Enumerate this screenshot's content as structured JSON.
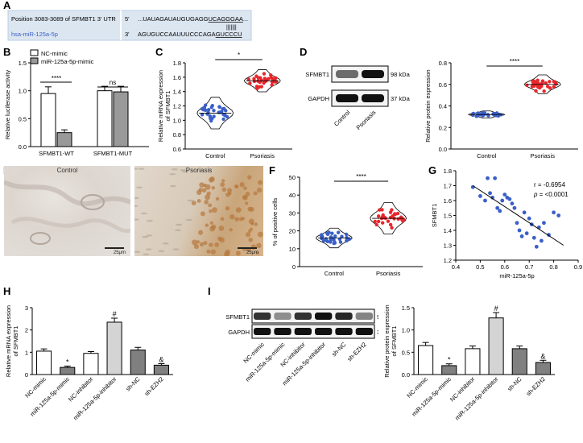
{
  "panelLabels": {
    "A": "A",
    "B": "B",
    "C": "C",
    "D": "D",
    "E": "E",
    "F": "F",
    "G": "G",
    "H": "H",
    "I": "I"
  },
  "panelA": {
    "row1Left": "Position 3083-3089 of SFMBT1 3' UTR",
    "row1Prime": "5'",
    "row1SeqPre": "...UAUAGAUAUGUGAGG",
    "row1SeqSeed": "UCAGGGAA",
    "row1SeqPost": "...",
    "row2Left": "hsa-miR-125a-5p",
    "row2Prime": "3'",
    "row2SeqPre": "AGUGUCCAAUUUCCCAGA",
    "row2SeqSeed": "GUCCCU",
    "pairing": "|||||||"
  },
  "panelB": {
    "legend": [
      "NC-mimic",
      "miR-125a-5p-mimic"
    ],
    "ylabel": "Relative luciferase activity",
    "sig1": "****",
    "sig2": "ns"
  },
  "panelC": {
    "ylabel": "Relative mRNA expression of SFMBT1",
    "sig": "*"
  },
  "panelD": {
    "blotRows": [
      "SFMBT1",
      "GAPDH"
    ],
    "blotKda": [
      "98 kDa",
      "37 kDa"
    ],
    "blotLanes": [
      "Control",
      "Psoriasis"
    ],
    "ylabel": "Relative protein expression",
    "sig": "****"
  },
  "panelE": {
    "captions": [
      "Control",
      "Psoriasis"
    ],
    "scale": [
      "25μm",
      "25μm"
    ]
  },
  "panelF": {
    "ylabel": "% of positive cells",
    "sig": "****"
  },
  "panelG": {
    "ylabel": "SFMBT1",
    "xlabel": "miR-125a-5p",
    "stat1": "r = -0.6954",
    "stat2pre": "p",
    "stat2post": " = <0.0001"
  },
  "panelH": {
    "ylabel": "Relative mRNA expression of SFMBT1",
    "marks": [
      "*",
      "#",
      "&"
    ]
  },
  "panelI": {
    "blotRows": [
      "SFMBT1",
      "GAPDH"
    ],
    "blotKda": [
      "98 kDa",
      "37 kDa"
    ],
    "ylabel": "Relative protein expression of SFMBT1",
    "marks": [
      "*",
      "#",
      "&"
    ]
  },
  "chart_data": [
    {
      "panel": "B",
      "type": "bar",
      "categories": [
        "SFMBT1-WT",
        "SFMBT1-MUT"
      ],
      "series": [
        {
          "name": "NC-mimic",
          "values": [
            0.95,
            1.0
          ],
          "color": "#ffffff"
        },
        {
          "name": "miR-125a-5p-mimic",
          "values": [
            0.25,
            0.98
          ],
          "color": "#999999"
        }
      ],
      "errors": [
        [
          0.12,
          0.08
        ],
        [
          0.05,
          0.1
        ]
      ],
      "ylim": [
        0,
        1.5
      ],
      "yticks": [
        "0.0",
        "0.5",
        "1.0",
        "1.5"
      ]
    },
    {
      "panel": "C",
      "type": "scatter",
      "categories": [
        "Control",
        "Psoriasis"
      ],
      "means": [
        1.1,
        1.55
      ],
      "spread": [
        0.1,
        0.07
      ],
      "ylim": [
        0.6,
        1.8
      ],
      "yticks": [
        "0.6",
        "0.8",
        "1.0",
        "1.2",
        "1.4",
        "1.6",
        "1.8"
      ],
      "colors": [
        "#3a5fc8",
        "#e8262b"
      ]
    },
    {
      "panel": "D",
      "type": "scatter",
      "categories": [
        "Control",
        "Psoriasis"
      ],
      "means": [
        0.32,
        0.6
      ],
      "spread": [
        0.015,
        0.04
      ],
      "ylim": [
        0,
        0.8
      ],
      "yticks": [
        "0.0",
        "0.2",
        "0.4",
        "0.6",
        "0.8"
      ],
      "colors": [
        "#3a5fc8",
        "#e8262b"
      ]
    },
    {
      "panel": "F",
      "type": "scatter",
      "categories": [
        "Control",
        "Psoriasis"
      ],
      "means": [
        16,
        27
      ],
      "spread": [
        2.5,
        4
      ],
      "ylim": [
        0,
        50
      ],
      "yticks": [
        "0",
        "10",
        "20",
        "30",
        "40",
        "50"
      ],
      "colors": [
        "#3a5fc8",
        "#e8262b"
      ]
    },
    {
      "panel": "G",
      "type": "scatter",
      "xlim": [
        0.4,
        0.9
      ],
      "ylim": [
        1.2,
        1.8
      ],
      "xticks": [
        "0.4",
        "0.5",
        "0.6",
        "0.7",
        "0.8",
        "0.9"
      ],
      "yticks": [
        "1.2",
        "1.3",
        "1.4",
        "1.5",
        "1.6",
        "1.7",
        "1.8"
      ],
      "x": [
        0.47,
        0.5,
        0.52,
        0.53,
        0.54,
        0.55,
        0.56,
        0.57,
        0.58,
        0.59,
        0.6,
        0.61,
        0.62,
        0.63,
        0.64,
        0.65,
        0.66,
        0.67,
        0.68,
        0.69,
        0.7,
        0.71,
        0.72,
        0.73,
        0.74,
        0.75,
        0.76,
        0.78,
        0.8,
        0.82
      ],
      "y": [
        1.69,
        1.63,
        1.6,
        1.75,
        1.65,
        1.62,
        1.75,
        1.55,
        1.53,
        1.6,
        1.64,
        1.62,
        1.61,
        1.58,
        1.55,
        1.45,
        1.4,
        1.36,
        1.52,
        1.38,
        1.48,
        1.44,
        1.35,
        1.29,
        1.42,
        1.33,
        1.45,
        1.37,
        1.52,
        1.5
      ],
      "line": [
        [
          0.47,
          1.7
        ],
        [
          0.84,
          1.3
        ]
      ],
      "color": "#3a5fc8"
    },
    {
      "panel": "H",
      "type": "bar",
      "categories": [
        "NC-mimic",
        "miR-125a-5p-mimic",
        "NC-inhibitor",
        "miR-125a-5p-inhibitor",
        "sh-NC",
        "sh-EZH2"
      ],
      "values": [
        1.05,
        0.32,
        0.95,
        2.35,
        1.1,
        0.42
      ],
      "errors": [
        0.1,
        0.06,
        0.08,
        0.18,
        0.12,
        0.07
      ],
      "colors": [
        "#ffffff",
        "#808080",
        "#ffffff",
        "#d4d4d4",
        "#808080",
        "#808080"
      ],
      "ylim": [
        0,
        3
      ],
      "yticks": [
        "0",
        "1",
        "2",
        "3"
      ],
      "marks": [
        "",
        "*",
        "",
        "#",
        "",
        "&"
      ]
    },
    {
      "panel": "I",
      "type": "bar",
      "categories": [
        "NC-mimic",
        "miR-125a-5p-mimic",
        "NC-inhibitor",
        "miR-125a-5p-inhibitor",
        "sh-NC",
        "sh-EZH2"
      ],
      "values": [
        0.65,
        0.2,
        0.58,
        1.27,
        0.58,
        0.27
      ],
      "errors": [
        0.07,
        0.04,
        0.06,
        0.12,
        0.06,
        0.05
      ],
      "colors": [
        "#ffffff",
        "#808080",
        "#ffffff",
        "#d4d4d4",
        "#808080",
        "#808080"
      ],
      "ylim": [
        0,
        1.5
      ],
      "yticks": [
        "0.0",
        "0.5",
        "1.0",
        "1.5"
      ],
      "marks": [
        "",
        "*",
        "",
        "#",
        "",
        "&"
      ]
    }
  ]
}
